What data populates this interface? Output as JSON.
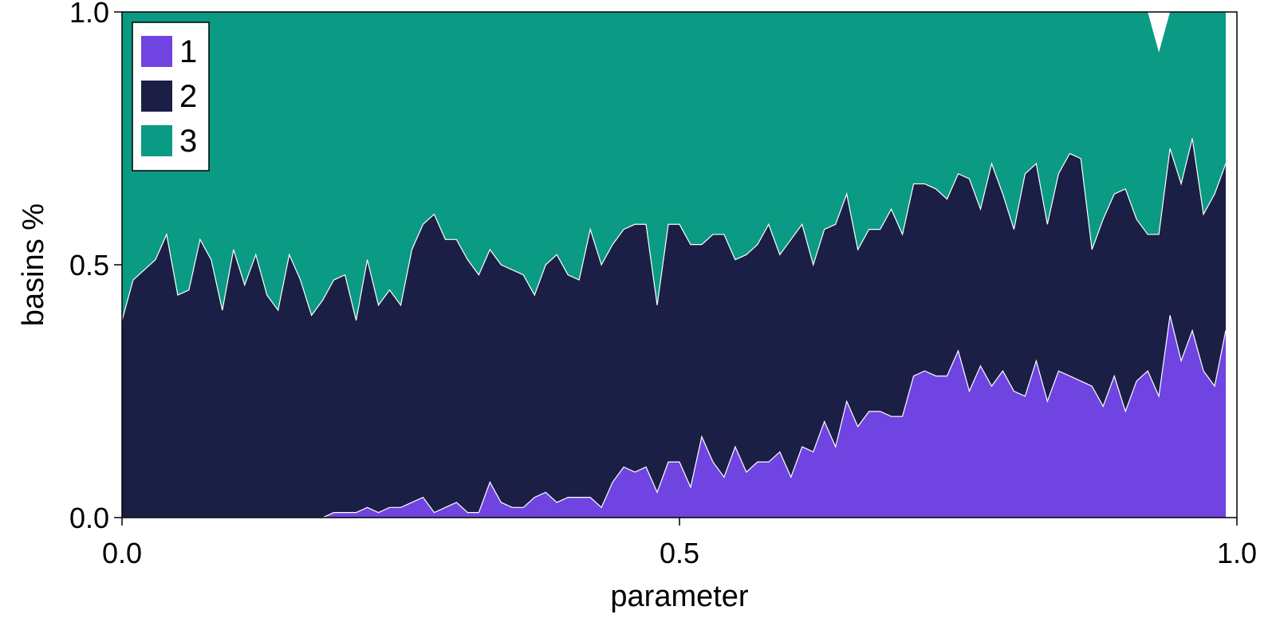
{
  "chart_data": {
    "type": "area",
    "stacked": true,
    "xlabel": "parameter",
    "ylabel": "basins %",
    "xlim": [
      0,
      1
    ],
    "ylim": [
      0,
      1
    ],
    "xticks": [
      "0.0",
      "0.5",
      "1.0"
    ],
    "yticks": [
      "0.0",
      "0.5",
      "1.0"
    ],
    "xtick_values": [
      0,
      0.5,
      1
    ],
    "ytick_values": [
      0,
      0.5,
      1
    ],
    "grid": false,
    "legend_position": "top-left",
    "x_start": 0,
    "x_step": 0.01,
    "series": [
      {
        "name": "1",
        "color": "#7044e0",
        "values": [
          0,
          0,
          0,
          0,
          0,
          0,
          0,
          0,
          0,
          0,
          0,
          0,
          0,
          0,
          0,
          0,
          0,
          0,
          0,
          0.01,
          0.01,
          0.01,
          0.02,
          0.01,
          0.02,
          0.02,
          0.03,
          0.04,
          0.01,
          0.02,
          0.03,
          0.01,
          0.01,
          0.07,
          0.03,
          0.02,
          0.02,
          0.04,
          0.05,
          0.03,
          0.04,
          0.04,
          0.04,
          0.02,
          0.07,
          0.1,
          0.09,
          0.1,
          0.05,
          0.11,
          0.11,
          0.06,
          0.16,
          0.11,
          0.08,
          0.14,
          0.09,
          0.11,
          0.11,
          0.13,
          0.08,
          0.14,
          0.13,
          0.19,
          0.14,
          0.23,
          0.18,
          0.21,
          0.21,
          0.2,
          0.2,
          0.28,
          0.29,
          0.28,
          0.28,
          0.33,
          0.25,
          0.3,
          0.26,
          0.29,
          0.25,
          0.24,
          0.31,
          0.23,
          0.29,
          0.28,
          0.27,
          0.26,
          0.22,
          0.28,
          0.21,
          0.27,
          0.29,
          0.24,
          0.4,
          0.31,
          0.37,
          0.29,
          0.26,
          0.37
        ]
      },
      {
        "name": "2",
        "color": "#1b1f45",
        "values": [
          0.39,
          0.47,
          0.49,
          0.51,
          0.56,
          0.44,
          0.45,
          0.55,
          0.51,
          0.41,
          0.53,
          0.46,
          0.52,
          0.44,
          0.41,
          0.52,
          0.47,
          0.4,
          0.43,
          0.46,
          0.47,
          0.38,
          0.49,
          0.41,
          0.43,
          0.4,
          0.5,
          0.54,
          0.59,
          0.53,
          0.52,
          0.5,
          0.47,
          0.46,
          0.47,
          0.47,
          0.46,
          0.4,
          0.45,
          0.49,
          0.44,
          0.43,
          0.53,
          0.48,
          0.47,
          0.47,
          0.49,
          0.48,
          0.37,
          0.47,
          0.47,
          0.48,
          0.38,
          0.45,
          0.48,
          0.37,
          0.43,
          0.43,
          0.47,
          0.39,
          0.47,
          0.44,
          0.37,
          0.38,
          0.44,
          0.41,
          0.35,
          0.36,
          0.36,
          0.41,
          0.36,
          0.38,
          0.37,
          0.37,
          0.35,
          0.35,
          0.42,
          0.31,
          0.44,
          0.35,
          0.32,
          0.44,
          0.39,
          0.35,
          0.39,
          0.44,
          0.44,
          0.27,
          0.37,
          0.36,
          0.44,
          0.32,
          0.27,
          0.32,
          0.33,
          0.35,
          0.38,
          0.31,
          0.38,
          0.33
        ]
      },
      {
        "name": "3",
        "color": "#0b9a84",
        "values": [
          0.61,
          0.53,
          0.51,
          0.49,
          0.44,
          0.56,
          0.55,
          0.45,
          0.49,
          0.59,
          0.47,
          0.54,
          0.48,
          0.56,
          0.59,
          0.48,
          0.53,
          0.6,
          0.57,
          0.53,
          0.52,
          0.61,
          0.49,
          0.58,
          0.55,
          0.58,
          0.47,
          0.42,
          0.4,
          0.45,
          0.45,
          0.49,
          0.52,
          0.47,
          0.5,
          0.51,
          0.52,
          0.56,
          0.5,
          0.48,
          0.52,
          0.53,
          0.43,
          0.5,
          0.46,
          0.43,
          0.42,
          0.42,
          0.58,
          0.42,
          0.42,
          0.46,
          0.46,
          0.44,
          0.44,
          0.49,
          0.48,
          0.46,
          0.42,
          0.48,
          0.45,
          0.42,
          0.5,
          0.43,
          0.42,
          0.36,
          0.47,
          0.43,
          0.43,
          0.39,
          0.44,
          0.34,
          0.34,
          0.35,
          0.37,
          0.32,
          0.33,
          0.39,
          0.3,
          0.36,
          0.43,
          0.32,
          0.3,
          0.42,
          0.32,
          0.28,
          0.29,
          0.47,
          0.41,
          0.36,
          0.35,
          0.41,
          0.44,
          0.36,
          0.27,
          0.34,
          0.25,
          0.4,
          0.36,
          0.3
        ]
      }
    ]
  }
}
